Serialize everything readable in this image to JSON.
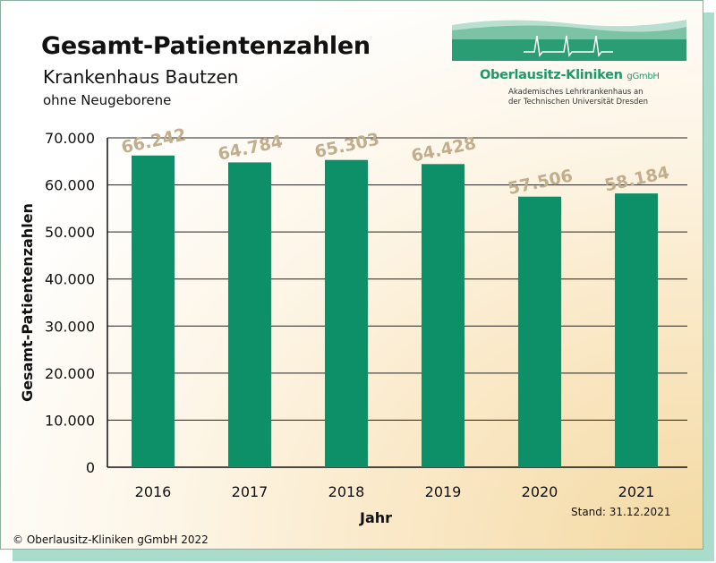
{
  "header": {
    "title": "Gesamt-Patientenzahlen",
    "subtitle": "Krankenhaus Bautzen",
    "note": "ohne Neugeborene"
  },
  "logo": {
    "name": "Oberlausitz-Kliniken",
    "suffix": "gGmbH",
    "line1": "Akademisches Lehrkrankenhaus an",
    "line2": "der Technischen Universität Dresden"
  },
  "footer": {
    "stand": "Stand: 31.12.2021",
    "copyright": "© Oberlausitz-Kliniken gGmbH 2022"
  },
  "colors": {
    "bar": "#0d8f68",
    "value_label": "#c2ae8c",
    "accent": "#1b9a6b"
  },
  "chart_data": {
    "type": "bar",
    "categories": [
      "2016",
      "2017",
      "2018",
      "2019",
      "2020",
      "2021"
    ],
    "values": [
      66242,
      64784,
      65303,
      64428,
      57506,
      58184
    ],
    "value_labels": [
      "66.242",
      "64.784",
      "65.303",
      "64.428",
      "57.506",
      "58.184"
    ],
    "xlabel": "Jahr",
    "ylabel": "Gesamt-Patientenzahlen",
    "ylim": [
      0,
      70000
    ],
    "yticks": [
      0,
      10000,
      20000,
      30000,
      40000,
      50000,
      60000,
      70000
    ],
    "ytick_labels": [
      "0",
      "10.000",
      "20.000",
      "30.000",
      "40.000",
      "50.000",
      "60.000",
      "70.000"
    ],
    "grid": true
  }
}
